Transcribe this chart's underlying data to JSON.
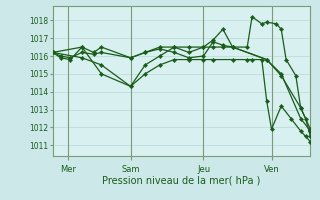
{
  "xlabel": "Pression niveau de la mer( hPa )",
  "bg_color": "#cce8e8",
  "plot_bg_color": "#d8f0f0",
  "grid_color": "#b8d8d8",
  "line_color": "#1a5c1a",
  "marker_color": "#1a5c1a",
  "tick_label_color": "#1a5c1a",
  "spine_color": "#7a9a7a",
  "ylim": [
    1010.4,
    1018.8
  ],
  "yticks": [
    1011,
    1012,
    1013,
    1014,
    1015,
    1016,
    1017,
    1018
  ],
  "day_labels": [
    "Mer",
    "Sam",
    "Jeu",
    "Ven"
  ],
  "day_positions": [
    16,
    80,
    155,
    225
  ],
  "vline_x": [
    16,
    80,
    155,
    225
  ],
  "xlim_data": [
    0,
    265
  ],
  "series1_x": [
    0,
    8,
    18,
    30,
    42,
    50,
    80,
    95,
    110,
    125,
    140,
    155,
    165,
    175,
    185,
    220,
    235,
    255,
    265
  ],
  "series1_y": [
    1016.2,
    1015.9,
    1015.8,
    1016.5,
    1016.2,
    1016.5,
    1015.9,
    1016.2,
    1016.4,
    1016.2,
    1015.9,
    1016.0,
    1016.8,
    1016.6,
    1016.5,
    1015.8,
    1014.9,
    1013.1,
    1011.9
  ],
  "series2_x": [
    0,
    8,
    18,
    30,
    42,
    50,
    80,
    95,
    110,
    125,
    140,
    155,
    165,
    175,
    185,
    220,
    235,
    255,
    265
  ],
  "series2_y": [
    1016.2,
    1016.0,
    1015.9,
    1016.2,
    1016.1,
    1016.2,
    1015.9,
    1016.2,
    1016.5,
    1016.5,
    1016.5,
    1016.5,
    1016.5,
    1016.5,
    1016.5,
    1015.8,
    1015.0,
    1012.5,
    1011.8
  ],
  "series3_x": [
    0,
    30,
    50,
    80,
    95,
    110,
    125,
    140,
    155,
    165,
    175,
    185,
    200,
    205,
    215,
    220,
    230,
    235,
    240,
    250,
    255,
    260,
    265
  ],
  "series3_y": [
    1016.2,
    1016.5,
    1015.0,
    1014.3,
    1015.5,
    1016.0,
    1016.5,
    1016.2,
    1016.5,
    1016.9,
    1017.5,
    1016.5,
    1016.5,
    1018.2,
    1017.8,
    1017.9,
    1017.8,
    1017.5,
    1015.8,
    1014.9,
    1013.1,
    1012.5,
    1011.5
  ],
  "series4_x": [
    0,
    30,
    50,
    80,
    95,
    110,
    125,
    140,
    155,
    165,
    185,
    200,
    205,
    215,
    220,
    225,
    235,
    245,
    255,
    260,
    265
  ],
  "series4_y": [
    1016.2,
    1015.9,
    1015.5,
    1014.3,
    1015.0,
    1015.5,
    1015.8,
    1015.8,
    1015.8,
    1015.8,
    1015.8,
    1015.8,
    1015.8,
    1015.8,
    1013.5,
    1011.9,
    1013.2,
    1012.5,
    1011.8,
    1011.5,
    1011.2
  ]
}
